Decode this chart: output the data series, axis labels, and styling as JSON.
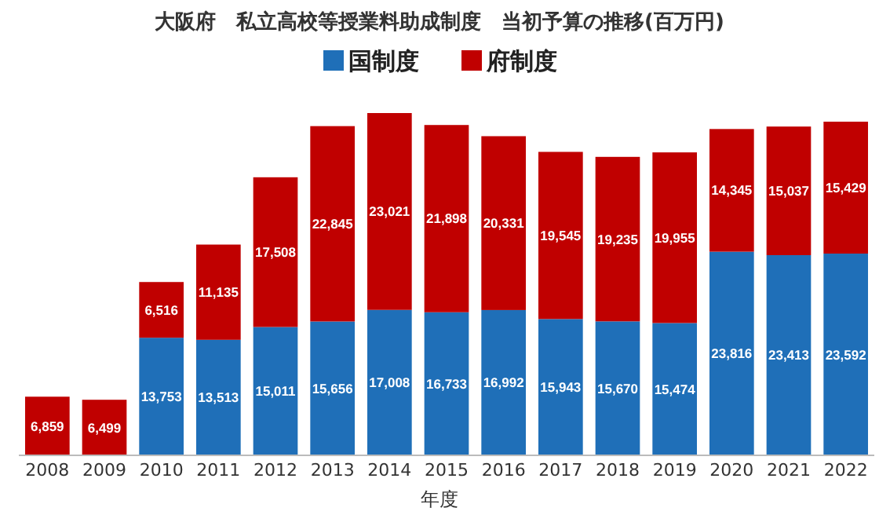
{
  "chart_data": {
    "type": "bar",
    "title": "大阪府　私立高校等授業料助成制度　当初予算の推移(百万円)",
    "xlabel": "年度",
    "categories": [
      "2008",
      "2009",
      "2010",
      "2011",
      "2012",
      "2013",
      "2014",
      "2015",
      "2016",
      "2017",
      "2018",
      "2019",
      "2020",
      "2021",
      "2022"
    ],
    "series": [
      {
        "name": "国制度",
        "color": "#1f6fb8",
        "values": [
          null,
          null,
          13753,
          13513,
          15011,
          15656,
          17008,
          16733,
          16992,
          15943,
          15670,
          15474,
          23816,
          23413,
          23592
        ],
        "value_labels": [
          null,
          null,
          "13,753",
          "13,513",
          "15,011",
          "15,656",
          "17,008",
          "16,733",
          "16,992",
          "15,943",
          "15,670",
          "15,474",
          "23,816",
          "23,413",
          "23,592"
        ]
      },
      {
        "name": "府制度",
        "color": "#c00000",
        "values": [
          6859,
          6499,
          6516,
          11135,
          17508,
          22845,
          23021,
          21898,
          20331,
          19545,
          19235,
          19955,
          14345,
          15037,
          15429
        ],
        "value_labels": [
          "6,859",
          "6,499",
          "6,516",
          "11,135",
          "17,508",
          "22,845",
          "23,021",
          "21,898",
          "20,331",
          "19,545",
          "19,235",
          "19,955",
          "14,345",
          "15,037",
          "15,429"
        ]
      }
    ],
    "stacked": true,
    "legend": "top"
  }
}
